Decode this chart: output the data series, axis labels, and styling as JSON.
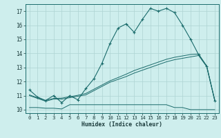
{
  "xlabel": "Humidex (Indice chaleur)",
  "xlim": [
    -0.5,
    23.5
  ],
  "ylim": [
    9.75,
    17.5
  ],
  "xticks": [
    0,
    1,
    2,
    3,
    4,
    5,
    6,
    7,
    8,
    9,
    10,
    11,
    12,
    13,
    14,
    15,
    16,
    17,
    18,
    19,
    20,
    21,
    22,
    23
  ],
  "yticks": [
    10,
    11,
    12,
    13,
    14,
    15,
    16,
    17
  ],
  "bg_color": "#ceeeed",
  "grid_color": "#aed4d3",
  "line_color": "#1a6b6b",
  "curve1_x": [
    0,
    1,
    2,
    3,
    4,
    5,
    6,
    7,
    8,
    9,
    10,
    11,
    12,
    13,
    14,
    15,
    16,
    17,
    18,
    19,
    20,
    21,
    22,
    23
  ],
  "curve1_y": [
    11.4,
    10.9,
    10.65,
    11.0,
    10.5,
    11.0,
    10.7,
    11.5,
    12.2,
    13.3,
    14.7,
    15.8,
    16.1,
    15.5,
    16.4,
    17.2,
    17.0,
    17.2,
    16.9,
    16.0,
    15.0,
    13.9,
    13.1,
    10.65
  ],
  "curve2_x": [
    0,
    1,
    2,
    3,
    4,
    5,
    6,
    7,
    8,
    9,
    10,
    11,
    12,
    13,
    14,
    15,
    16,
    17,
    18,
    19,
    20,
    21,
    22,
    23
  ],
  "curve2_y": [
    10.15,
    10.15,
    10.1,
    10.1,
    10.05,
    10.35,
    10.35,
    10.35,
    10.35,
    10.35,
    10.35,
    10.35,
    10.35,
    10.35,
    10.35,
    10.35,
    10.35,
    10.35,
    10.15,
    10.15,
    10.0,
    10.0,
    10.0,
    10.0
  ],
  "curve3_x": [
    0,
    1,
    2,
    3,
    4,
    5,
    6,
    7,
    8,
    9,
    10,
    11,
    12,
    13,
    14,
    15,
    16,
    17,
    18,
    19,
    20,
    21,
    22,
    23
  ],
  "curve3_y": [
    11.0,
    10.8,
    10.6,
    10.75,
    10.75,
    10.85,
    10.95,
    11.05,
    11.35,
    11.65,
    11.95,
    12.15,
    12.35,
    12.6,
    12.8,
    13.0,
    13.2,
    13.4,
    13.55,
    13.65,
    13.75,
    13.85,
    13.05,
    10.65
  ],
  "curve4_x": [
    0,
    1,
    2,
    3,
    4,
    5,
    6,
    7,
    8,
    9,
    10,
    11,
    12,
    13,
    14,
    15,
    16,
    17,
    18,
    19,
    20,
    21,
    22,
    23
  ],
  "curve4_y": [
    11.05,
    10.85,
    10.65,
    10.8,
    10.82,
    10.92,
    11.02,
    11.15,
    11.45,
    11.75,
    12.05,
    12.28,
    12.52,
    12.78,
    12.98,
    13.18,
    13.38,
    13.58,
    13.72,
    13.82,
    13.92,
    13.95,
    13.1,
    10.65
  ]
}
